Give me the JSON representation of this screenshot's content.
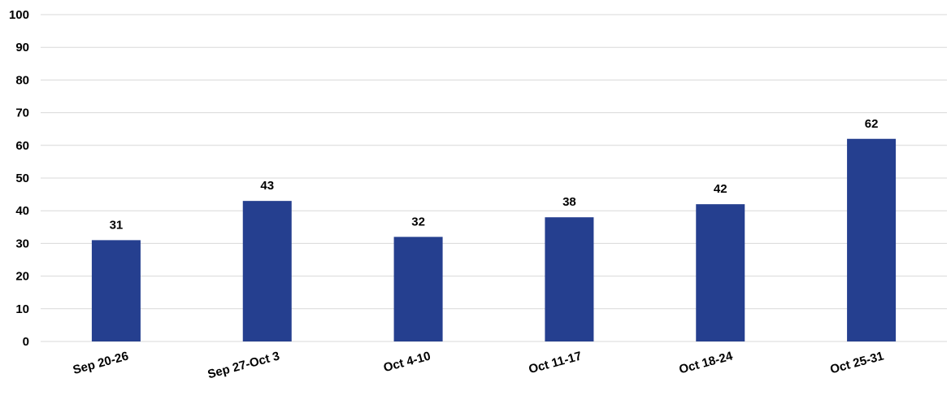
{
  "chart_data": {
    "type": "bar",
    "title": "",
    "xlabel": "",
    "ylabel": "",
    "categories": [
      "Sep 20-26",
      "Sep 27-Oct 3",
      "Oct 4-10",
      "Oct 11-17",
      "Oct 18-24",
      "Oct 25-31"
    ],
    "values": [
      31,
      43,
      32,
      38,
      42,
      62
    ],
    "ylim": [
      0,
      100
    ],
    "yticks": [
      "0",
      "10",
      "20",
      "30",
      "40",
      "50",
      "60",
      "70",
      "80",
      "90",
      "100"
    ],
    "grid": true,
    "legend": "none",
    "bar_color": "#253F8F",
    "grid_color": "#D9D9D9"
  }
}
